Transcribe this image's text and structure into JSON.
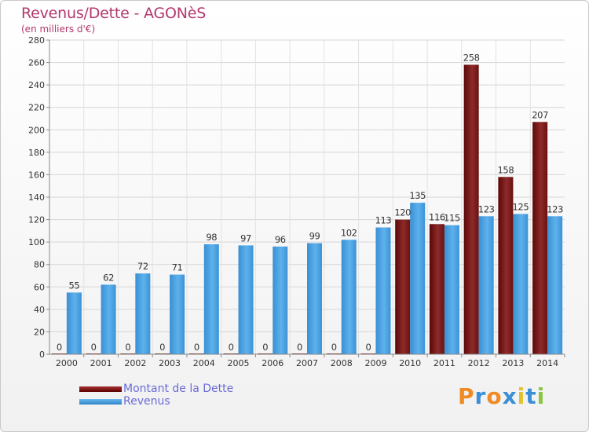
{
  "chart_data": {
    "type": "bar",
    "title": "Revenus/Dette - AGONèS",
    "subtitle": "(en milliers d'€)",
    "xlabel": "",
    "ylabel": "",
    "ylim": [
      0,
      280
    ],
    "ytick_step": 20,
    "grid": true,
    "categories": [
      "2000",
      "2001",
      "2002",
      "2003",
      "2004",
      "2005",
      "2006",
      "2007",
      "2008",
      "2009",
      "2010",
      "2011",
      "2012",
      "2013",
      "2014"
    ],
    "series": [
      {
        "name": "Montant de la Dette",
        "color": "#7a1010",
        "values": [
          0,
          0,
          0,
          0,
          0,
          0,
          0,
          0,
          0,
          0,
          120,
          116,
          258,
          158,
          207
        ]
      },
      {
        "name": "Revenus",
        "color": "#3f9be0",
        "values": [
          55,
          62,
          72,
          71,
          98,
          97,
          96,
          99,
          102,
          113,
          135,
          115,
          123,
          125,
          123
        ]
      }
    ]
  },
  "legend": {
    "placement": "bottom-left",
    "debt_label": "Montant de la Dette",
    "revenue_label": "Revenus"
  },
  "logo": {
    "text": "Proxiti",
    "colors": [
      "#f08a24",
      "#3a8fd6",
      "#f08a24",
      "#3a8fd6",
      "#e3c12a",
      "#3a8fd6",
      "#8cc63f"
    ]
  }
}
